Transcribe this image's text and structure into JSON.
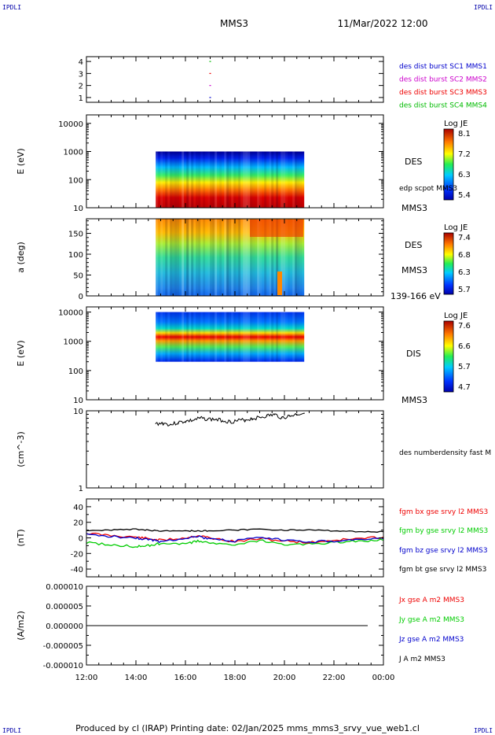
{
  "corners": {
    "tl": "IPDLI",
    "tr": "IPDLI",
    "bl": "IPDLI",
    "br": "IPDLI"
  },
  "header": {
    "mission": "MMS3",
    "datetime": "11/Mar/2022 12:00"
  },
  "footer": "Produced by cl (IRAP)   Printing date: 02/Jan/2025   mms_mms3_srvy_vue_web1.cl",
  "colors": {
    "mms1": "#0000cc",
    "mms2": "#cc00cc",
    "mms3": "#ee0000",
    "mms4": "#00bb00",
    "bx": "#ee0000",
    "by": "#00cc00",
    "bz": "#0000cc",
    "bt": "#000000"
  },
  "chart_data": [
    {
      "type": "scatter",
      "id": "burst",
      "ylim": [
        0.6,
        4.4
      ],
      "yticks": [
        "1",
        "2",
        "3",
        "4"
      ],
      "x": [
        "17:00",
        "17:00",
        "17:00",
        "17:00"
      ],
      "y": [
        4,
        3,
        2,
        1
      ],
      "legend": [
        {
          "label": "des dist burst SC1 MMS1",
          "color_key": "mms1"
        },
        {
          "label": "des dist burst SC2 MMS2",
          "color_key": "mms2"
        },
        {
          "label": "des dist burst SC3 MMS3",
          "color_key": "mms3"
        },
        {
          "label": "des dist burst SC4 MMS4",
          "color_key": "mms4"
        }
      ]
    },
    {
      "type": "heatmap",
      "id": "des_energy",
      "ylabel": "E (eV)",
      "scale": "log",
      "ylim": [
        10,
        20000
      ],
      "yticks": [
        "10",
        "100",
        "1000",
        "10000"
      ],
      "xrange": [
        "14:48",
        "20:48"
      ],
      "colorbar": {
        "title": "Log JE",
        "ticks": [
          "8.1",
          "7.2",
          "6.3",
          "5.4"
        ]
      },
      "side_labels": [
        "DES",
        "edp scpot MMS3",
        "MMS3"
      ]
    },
    {
      "type": "heatmap",
      "id": "des_pitch",
      "ylabel": "a (deg)",
      "ylim": [
        0,
        185
      ],
      "yticks": [
        "0",
        "50",
        "100",
        "150"
      ],
      "xrange": [
        "14:48",
        "20:48"
      ],
      "colorbar": {
        "title": "Log JE",
        "ticks": [
          "7.4",
          "6.8",
          "6.3",
          "5.7"
        ]
      },
      "side_labels": [
        "DES",
        "MMS3",
        "139-166 eV"
      ]
    },
    {
      "type": "heatmap",
      "id": "dis_energy",
      "ylabel": "E (eV)",
      "scale": "log",
      "ylim": [
        10,
        15000
      ],
      "yticks": [
        "10",
        "100",
        "1000",
        "10000"
      ],
      "xrange": [
        "14:48",
        "20:48"
      ],
      "colorbar": {
        "title": "Log JE",
        "ticks": [
          "7.6",
          "6.6",
          "5.7",
          "4.7"
        ]
      },
      "side_labels": [
        "DIS",
        "MMS3"
      ]
    },
    {
      "type": "line",
      "id": "density",
      "ylabel": "(cm^-3)",
      "scale": "log",
      "ylim": [
        1,
        10
      ],
      "yticks": [
        "1",
        "10"
      ],
      "series": [
        {
          "name": "des numberdensity fast M",
          "x": [
            "14:48",
            "15:06",
            "15:24",
            "15:42",
            "16:00",
            "16:18",
            "16:36",
            "16:54",
            "17:12",
            "17:30",
            "17:48",
            "18:06",
            "18:24",
            "18:42",
            "19:00",
            "19:18",
            "19:36",
            "19:54",
            "20:12",
            "20:30",
            "20:48"
          ],
          "y": [
            6.8,
            6.9,
            6.6,
            7.0,
            7.3,
            7.5,
            8.0,
            7.8,
            7.7,
            7.5,
            7.2,
            7.4,
            7.6,
            7.9,
            8.2,
            8.6,
            8.9,
            8.1,
            8.5,
            9.0,
            9.3
          ]
        }
      ]
    },
    {
      "type": "line",
      "id": "bfield",
      "ylabel": "(nT)",
      "ylim": [
        -50,
        50
      ],
      "yticks": [
        "-40",
        "-20",
        "0",
        "20",
        "40"
      ],
      "series": [
        {
          "name": "fgm bx gse srvy l2 MMS3",
          "color_key": "bx",
          "x": [
            "12:00",
            "13:00",
            "14:00",
            "14:30",
            "15:00",
            "16:00",
            "16:30",
            "17:00",
            "18:00",
            "19:00",
            "20:00",
            "21:00",
            "22:00",
            "23:00",
            "00:00"
          ],
          "y": [
            6,
            3,
            1,
            -1,
            -3,
            0,
            3,
            0,
            -5,
            -1,
            -4,
            -6,
            -3,
            -1,
            1
          ]
        },
        {
          "name": "fgm by gse srvy l2 MMS3",
          "color_key": "by",
          "x": [
            "12:00",
            "13:00",
            "14:00",
            "14:30",
            "15:00",
            "16:00",
            "16:30",
            "17:00",
            "18:00",
            "19:00",
            "20:00",
            "21:00",
            "22:00",
            "23:00",
            "00:00"
          ],
          "y": [
            -6,
            -9,
            -11,
            -10,
            -7,
            -8,
            -4,
            -6,
            -10,
            -3,
            -9,
            -8,
            -6,
            -4,
            -3
          ]
        },
        {
          "name": "fgm bz gse srvy l2 MMS3",
          "color_key": "bz",
          "x": [
            "12:00",
            "13:00",
            "14:00",
            "14:30",
            "15:00",
            "16:00",
            "16:30",
            "17:00",
            "18:00",
            "19:00",
            "20:00",
            "21:00",
            "22:00",
            "23:00",
            "00:00"
          ],
          "y": [
            4,
            2,
            0,
            -2,
            -5,
            0,
            2,
            -2,
            -4,
            0,
            -3,
            -5,
            -4,
            -2,
            -1
          ]
        },
        {
          "name": "fgm bt gse srvy l2 MMS3",
          "color_key": "bt",
          "x": [
            "12:00",
            "13:00",
            "14:00",
            "14:30",
            "15:00",
            "16:00",
            "16:30",
            "17:00",
            "18:00",
            "19:00",
            "20:00",
            "21:00",
            "22:00",
            "23:00",
            "00:00"
          ],
          "y": [
            9,
            10,
            11,
            10,
            9,
            9,
            9,
            9,
            10,
            11,
            10,
            10,
            9,
            8,
            8
          ]
        }
      ]
    },
    {
      "type": "line",
      "id": "current",
      "ylabel": "(A/m2)",
      "ylim": [
        -1e-05,
        1e-05
      ],
      "yticks": [
        "-0.000010",
        "-0.000005",
        "0.000000",
        "0.000005",
        "0.000010"
      ],
      "series": [
        {
          "name": "Jx gse A m2 MMS3",
          "color_key": "bx",
          "x": [
            "12:00",
            "00:00"
          ],
          "y": [
            0,
            0
          ]
        },
        {
          "name": "Jy gse A m2 MMS3",
          "color_key": "by",
          "x": [
            "12:00",
            "00:00"
          ],
          "y": [
            0,
            0
          ]
        },
        {
          "name": "Jz gse A m2 MMS3",
          "color_key": "bz",
          "x": [
            "12:00",
            "00:00"
          ],
          "y": [
            0,
            0
          ]
        },
        {
          "name": "J A m2 MMS3",
          "color_key": "bt",
          "x": [
            "12:00",
            "00:00"
          ],
          "y": [
            0,
            0
          ]
        }
      ]
    }
  ],
  "xaxis": {
    "ticks": [
      "12:00",
      "14:00",
      "16:00",
      "18:00",
      "20:00",
      "22:00",
      "00:00"
    ]
  }
}
